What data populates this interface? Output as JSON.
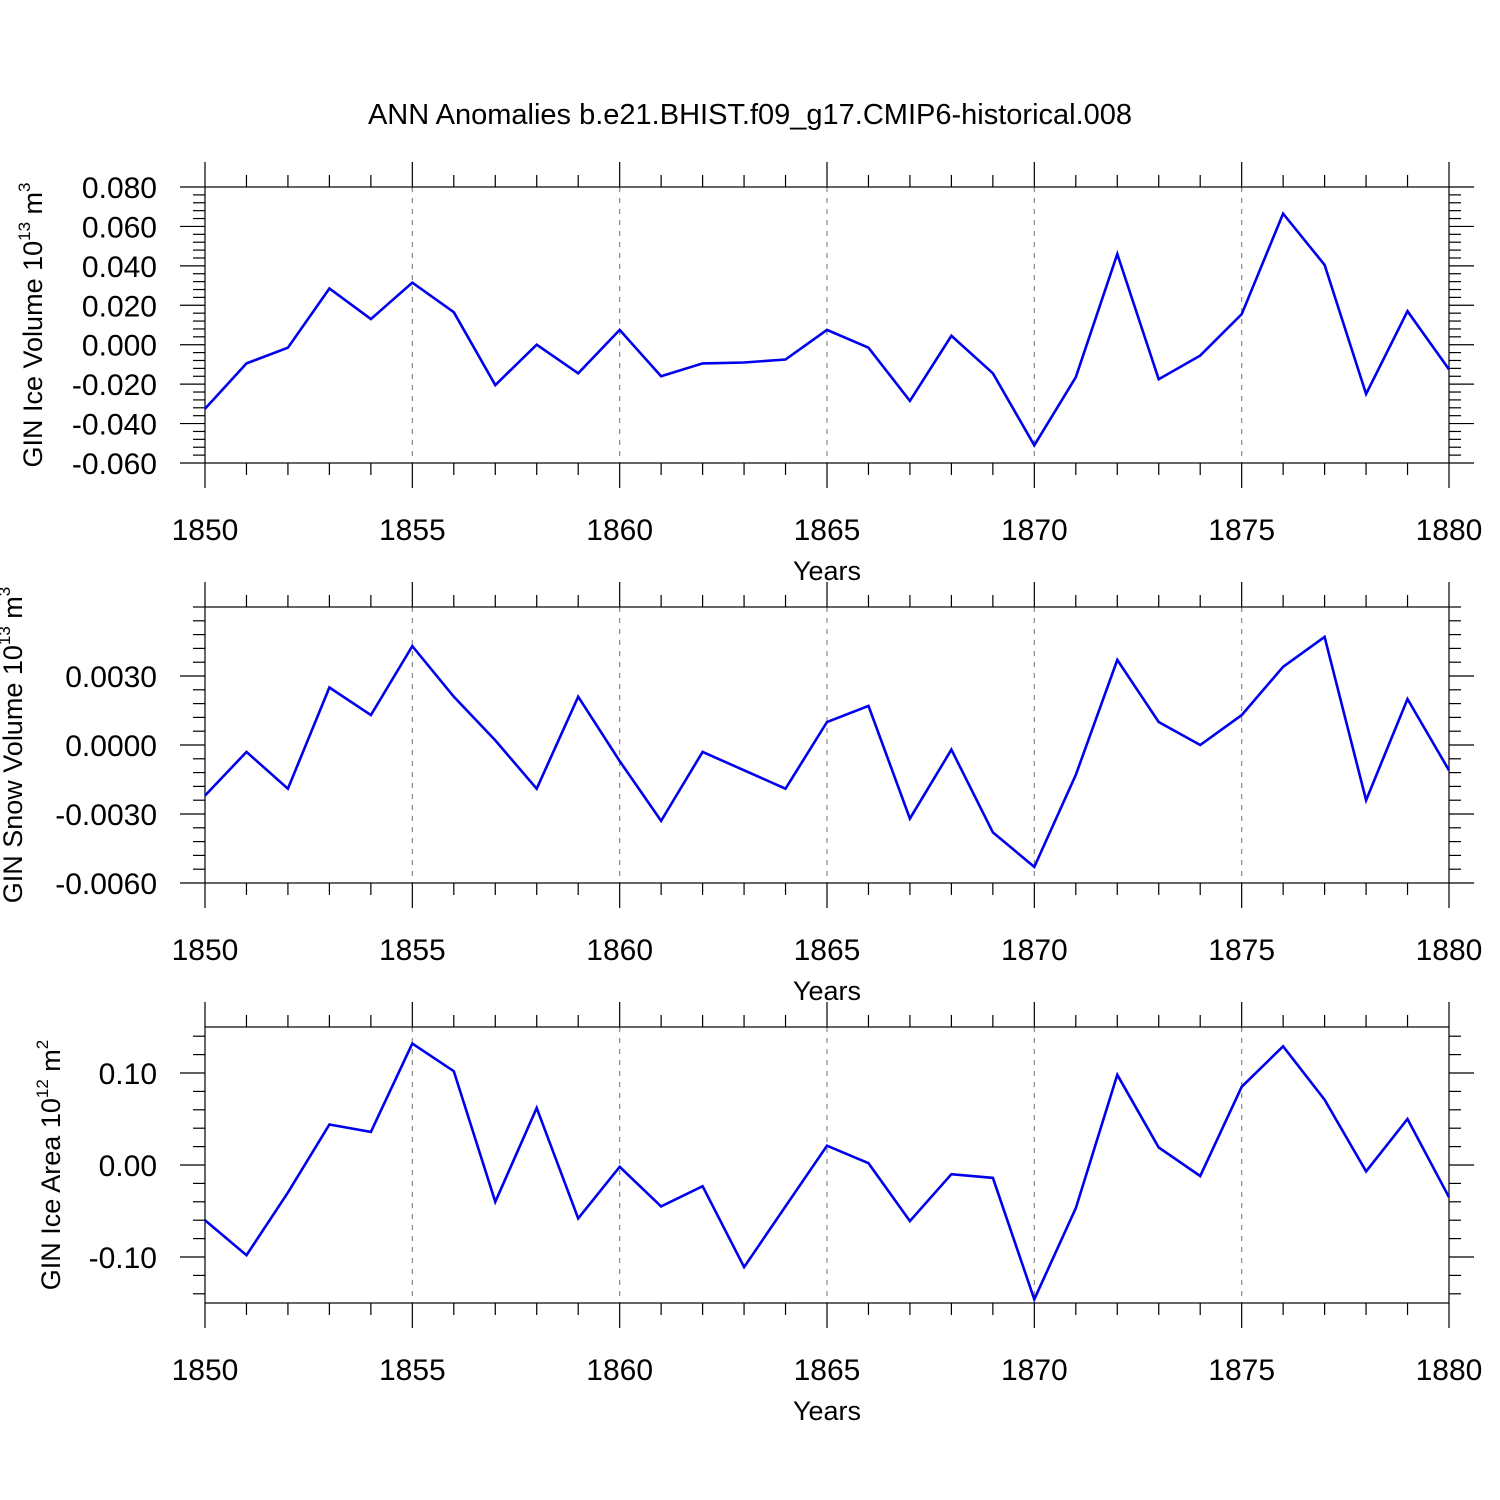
{
  "title": "ANN Anomalies b.e21.BHIST.f09_g17.CMIP6-historical.008",
  "chart_data": [
    {
      "type": "line",
      "title": "",
      "xlabel": "Years",
      "ylabel": {
        "base": "GIN Ice Volume 10",
        "sup": "13",
        "unit": " m",
        "unit_sup": "3"
      },
      "xlim": [
        1850,
        1880
      ],
      "ylim": [
        -0.06,
        0.08
      ],
      "xticks": [
        "1850",
        "1855",
        "1860",
        "1865",
        "1870",
        "1875",
        "1880"
      ],
      "yticks": [
        {
          "v": 0.08,
          "label": "0.080"
        },
        {
          "v": 0.06,
          "label": "0.060"
        },
        {
          "v": 0.04,
          "label": "0.040"
        },
        {
          "v": 0.02,
          "label": "0.020"
        },
        {
          "v": 0.0,
          "label": "0.000"
        },
        {
          "v": -0.02,
          "label": "-0.020"
        },
        {
          "v": -0.04,
          "label": "-0.040"
        },
        {
          "v": -0.06,
          "label": "-0.060"
        }
      ],
      "grid": "vertical dashed at major x ticks",
      "color": "#0000ee",
      "x": [
        1850,
        1851,
        1852,
        1853,
        1854,
        1855,
        1856,
        1857,
        1858,
        1859,
        1860,
        1861,
        1862,
        1863,
        1864,
        1865,
        1866,
        1867,
        1868,
        1869,
        1870,
        1871,
        1872,
        1873,
        1874,
        1875,
        1876,
        1877,
        1878,
        1879,
        1880
      ],
      "y": [
        -0.0325,
        -0.0095,
        -0.0015,
        0.0285,
        0.013,
        0.0315,
        0.0165,
        -0.0205,
        0.0,
        -0.0145,
        0.0075,
        -0.016,
        -0.0095,
        -0.009,
        -0.0075,
        0.0075,
        -0.0015,
        -0.0285,
        0.0045,
        -0.0145,
        -0.051,
        -0.0165,
        0.046,
        -0.0175,
        -0.0055,
        0.0155,
        0.0665,
        0.0405,
        -0.025,
        0.017,
        -0.0125
      ]
    },
    {
      "type": "line",
      "title": "",
      "xlabel": "Years",
      "ylabel": {
        "base": "GIN Snow Volume 10",
        "sup": "13",
        "unit": " m",
        "unit_sup": "3"
      },
      "xlim": [
        1850,
        1880
      ],
      "ylim": [
        -0.006,
        0.006
      ],
      "xticks": [
        "1850",
        "1855",
        "1860",
        "1865",
        "1870",
        "1875",
        "1880"
      ],
      "yticks": [
        {
          "v": 0.003,
          "label": "0.0030"
        },
        {
          "v": 0.0,
          "label": "0.0000"
        },
        {
          "v": -0.003,
          "label": "-0.0030"
        },
        {
          "v": -0.006,
          "label": "-0.0060"
        }
      ],
      "grid": "vertical dashed at major x ticks",
      "color": "#0000ee",
      "x": [
        1850,
        1851,
        1852,
        1853,
        1854,
        1855,
        1856,
        1857,
        1858,
        1859,
        1860,
        1861,
        1862,
        1863,
        1864,
        1865,
        1866,
        1867,
        1868,
        1869,
        1870,
        1871,
        1872,
        1873,
        1874,
        1875,
        1876,
        1877,
        1878,
        1879,
        1880
      ],
      "y": [
        -0.0022,
        -0.0003,
        -0.0019,
        0.0025,
        0.0013,
        0.0043,
        0.0021,
        0.0002,
        -0.0019,
        0.0021,
        -0.0007,
        -0.0033,
        -0.0003,
        -0.0011,
        -0.0019,
        0.001,
        0.0017,
        -0.0032,
        -0.0002,
        -0.0038,
        -0.0053,
        -0.0013,
        0.0037,
        0.001,
        0.0,
        0.0013,
        0.0034,
        0.0047,
        -0.0024,
        0.002,
        -0.0011
      ]
    },
    {
      "type": "line",
      "title": "",
      "xlabel": "Years",
      "ylabel": {
        "base": "GIN Ice Area 10",
        "sup": "12",
        "unit": " m",
        "unit_sup": "2"
      },
      "xlim": [
        1850,
        1880
      ],
      "ylim": [
        -0.15,
        0.15
      ],
      "xticks": [
        "1850",
        "1855",
        "1860",
        "1865",
        "1870",
        "1875",
        "1880"
      ],
      "yticks": [
        {
          "v": 0.1,
          "label": "0.10"
        },
        {
          "v": 0.0,
          "label": "0.00"
        },
        {
          "v": -0.1,
          "label": "-0.10"
        }
      ],
      "grid": "vertical dashed at major x ticks",
      "color": "#0000ee",
      "x": [
        1850,
        1851,
        1852,
        1853,
        1854,
        1855,
        1856,
        1857,
        1858,
        1859,
        1860,
        1861,
        1862,
        1863,
        1864,
        1865,
        1866,
        1867,
        1868,
        1869,
        1870,
        1871,
        1872,
        1873,
        1874,
        1875,
        1876,
        1877,
        1878,
        1879,
        1880
      ],
      "y": [
        -0.06,
        -0.098,
        -0.03,
        0.044,
        0.036,
        0.132,
        0.102,
        -0.04,
        0.062,
        -0.058,
        -0.002,
        -0.045,
        -0.023,
        -0.111,
        -0.045,
        0.021,
        0.002,
        -0.061,
        -0.01,
        -0.014,
        -0.146,
        -0.047,
        0.098,
        0.019,
        -0.012,
        0.085,
        0.129,
        0.071,
        -0.007,
        0.05,
        -0.035
      ]
    }
  ]
}
